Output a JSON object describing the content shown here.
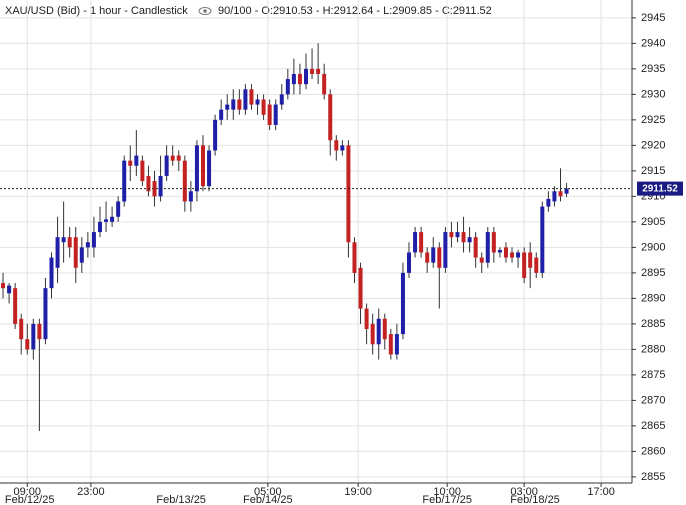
{
  "chart_data": {
    "type": "candlestick",
    "title": "XAU/USD (Bid) - 1 hour - Candlestick",
    "subtitle": "90/100 - O:2910.53 - H:2912.64 - L:2909.85 - C:2911.52",
    "series": {
      "open": [
        2893,
        2891,
        2892,
        2886,
        2882,
        2880,
        2885,
        2882,
        2892,
        2896,
        2901,
        2902,
        2902,
        2897,
        2900,
        2900,
        2903,
        2905,
        2905,
        2906,
        2909,
        2917,
        2916,
        2917,
        2914,
        2913,
        2910,
        2914,
        2918,
        2918,
        2917,
        2909,
        2911,
        2920,
        2912,
        2919,
        2925,
        2927,
        2927,
        2929,
        2927,
        2931,
        2928,
        2929,
        2928,
        2924,
        2928,
        2930,
        2932,
        2934,
        2932,
        2935,
        2935,
        2934,
        2930,
        2921,
        2919,
        2920,
        2901,
        2896,
        2888,
        2885,
        2881,
        2886,
        2883,
        2879,
        2883,
        2895,
        2899,
        2903,
        2899,
        2897,
        2900,
        2896,
        2903,
        2902,
        2903,
        2901,
        2902,
        2898,
        2897,
        2903,
        2899,
        2900,
        2899,
        2898,
        2899,
        2899,
        2898,
        2895,
        2908,
        2909,
        2911,
        2910.53
      ],
      "high": [
        2895,
        2893,
        2893,
        2887,
        2885,
        2886,
        2886,
        2894,
        2899,
        2906,
        2909,
        2904,
        2904,
        2902,
        2903,
        2906,
        2908,
        2909,
        2908,
        2910,
        2918,
        2920,
        2923,
        2918,
        2916,
        2915,
        2918,
        2920,
        2920,
        2919,
        2918,
        2913,
        2921,
        2922,
        2920,
        2926,
        2929,
        2930,
        2931,
        2931,
        2932,
        2932,
        2930,
        2930,
        2929,
        2929,
        2932,
        2935,
        2937,
        2936,
        2938,
        2939,
        2940,
        2936,
        2931,
        2922,
        2921,
        2921,
        2902,
        2897,
        2889,
        2887,
        2888,
        2887,
        2884,
        2885,
        2897,
        2901,
        2904,
        2904,
        2900,
        2902,
        2901,
        2904,
        2905,
        2905,
        2906,
        2904,
        2903,
        2899,
        2904,
        2904,
        2900,
        2901,
        2900,
        2899.5,
        2900,
        2901,
        2899,
        2909,
        2911,
        2912,
        2915.5,
        2912.64
      ],
      "low": [
        2890,
        2889,
        2884,
        2879,
        2879,
        2878,
        2864,
        2881,
        2890,
        2893,
        2897,
        2898,
        2893,
        2895,
        2898,
        2898,
        2902,
        2903,
        2904,
        2905,
        2908,
        2913,
        2914,
        2912,
        2910,
        2908,
        2909,
        2913,
        2916,
        2915,
        2907,
        2907,
        2909,
        2911,
        2911,
        2918,
        2924,
        2925,
        2925,
        2926,
        2926,
        2927,
        2926,
        2925,
        2923,
        2923,
        2927,
        2929,
        2930,
        2930,
        2931,
        2933,
        2932,
        2929,
        2918,
        2917,
        2918,
        2898,
        2893,
        2885,
        2881,
        2879,
        2878,
        2880,
        2878,
        2878,
        2882,
        2894,
        2898,
        2898,
        2895,
        2896,
        2888,
        2895,
        2900,
        2901,
        2899,
        2899,
        2896,
        2895,
        2896,
        2897,
        2898,
        2897,
        2897,
        2896,
        2893,
        2892,
        2894,
        2894,
        2907,
        2908,
        2909,
        2909.85
      ],
      "close": [
        2892,
        2892.5,
        2885,
        2882,
        2880,
        2885,
        2882,
        2892,
        2898,
        2902,
        2902,
        2900,
        2896,
        2900,
        2901,
        2903,
        2905,
        2905.5,
        2906,
        2909,
        2917,
        2916,
        2918,
        2913,
        2911,
        2910,
        2914,
        2918,
        2917,
        2917,
        2909,
        2911,
        2920,
        2912,
        2919,
        2925,
        2927,
        2928,
        2929,
        2927,
        2931,
        2928,
        2929,
        2926,
        2924,
        2928,
        2930,
        2933,
        2934,
        2932,
        2935,
        2934,
        2934,
        2930,
        2921,
        2919,
        2920,
        2901,
        2895,
        2888,
        2884,
        2881,
        2886,
        2882,
        2879,
        2883,
        2895,
        2899,
        2903,
        2899,
        2897,
        2900,
        2896,
        2903,
        2902,
        2903,
        2901,
        2902,
        2898,
        2897,
        2903,
        2899,
        2899.5,
        2898,
        2898,
        2899,
        2894,
        2896,
        2895,
        2908,
        2909.5,
        2911,
        2910,
        2911.52
      ]
    },
    "up_color": "#1f1fa8",
    "down_color": "#c42222",
    "wick_color": "#333333",
    "xlim": [
      -0.5,
      103.8
    ],
    "xticks": [
      {
        "value": 4,
        "label": "09:00"
      },
      {
        "value": 14.5,
        "label": "23:00"
      },
      {
        "value": 43.7,
        "label": "05:00"
      },
      {
        "value": 58.6,
        "label": "19:00"
      },
      {
        "value": 73.3,
        "label": "10:00"
      },
      {
        "value": 86,
        "label": "03:00"
      },
      {
        "value": 98.7,
        "label": "17:00"
      }
    ],
    "date_ticks": [
      {
        "value": 4.4,
        "label": "Feb/12/25"
      },
      {
        "value": 29.4,
        "label": "Feb/13/25"
      },
      {
        "value": 43.7,
        "label": "Feb/14/25"
      },
      {
        "value": 73.3,
        "label": "Feb/17/25"
      },
      {
        "value": 87.8,
        "label": "Feb/18/25"
      }
    ],
    "ylim": [
      2853.8,
      2948.5
    ],
    "yticks": [
      2855,
      2860,
      2865,
      2870,
      2875,
      2880,
      2885,
      2890,
      2895,
      2900,
      2905,
      2910,
      2915,
      2920,
      2925,
      2930,
      2935,
      2940,
      2945
    ],
    "grid": true,
    "last_price": 2911.52,
    "last_price_color": "#1a1a80"
  }
}
